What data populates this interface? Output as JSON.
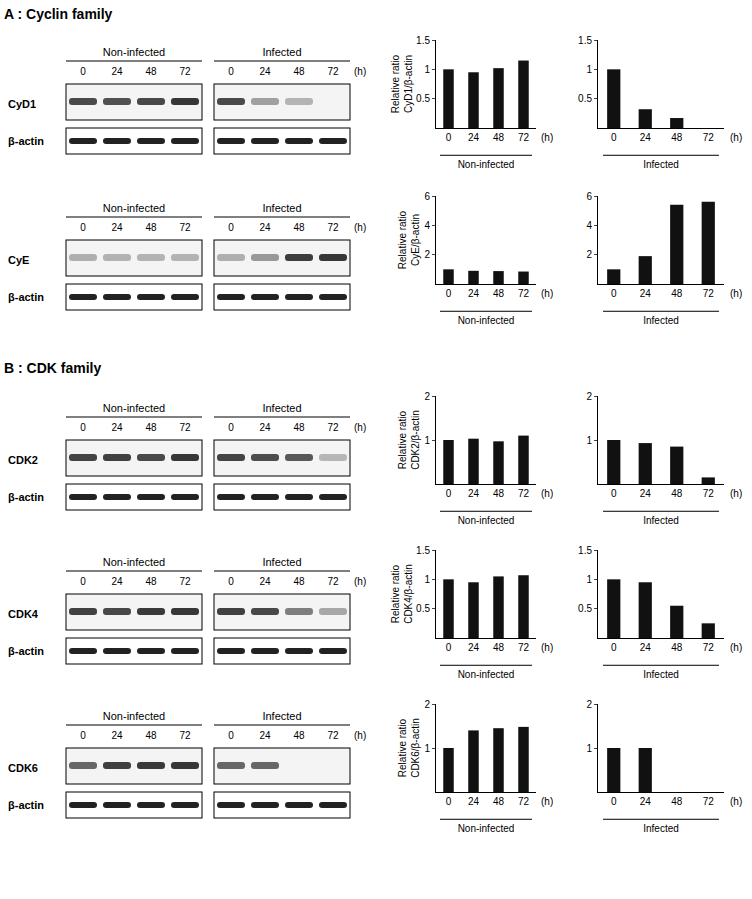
{
  "sections": [
    {
      "title": "A : Cyclin family",
      "blots": [
        {
          "protein": "CyD1",
          "loading": "β-actin",
          "groups": [
            "Non-infected",
            "Infected"
          ],
          "lanes": [
            "0",
            "24",
            "48",
            "72"
          ],
          "unit": "(h)"
        },
        {
          "protein": "CyE",
          "loading": "β-actin",
          "groups": [
            "Non-infected",
            "Infected"
          ],
          "lanes": [
            "0",
            "24",
            "48",
            "72"
          ],
          "unit": "(h)"
        }
      ]
    },
    {
      "title": "B : CDK family",
      "blots": [
        {
          "protein": "CDK2",
          "loading": "β-actin",
          "groups": [
            "Non-infected",
            "Infected"
          ],
          "lanes": [
            "0",
            "24",
            "48",
            "72"
          ],
          "unit": "(h)"
        },
        {
          "protein": "CDK4",
          "loading": "β-actin",
          "groups": [
            "Non-infected",
            "Infected"
          ],
          "lanes": [
            "0",
            "24",
            "48",
            "72"
          ],
          "unit": "(h)"
        },
        {
          "protein": "CDK6",
          "loading": "β-actin",
          "groups": [
            "Non-infected",
            "Infected"
          ],
          "lanes": [
            "0",
            "24",
            "48",
            "72"
          ],
          "unit": "(h)"
        }
      ]
    }
  ],
  "chart_data": [
    {
      "type": "bar",
      "ylabel": [
        "Relative ratio",
        "CyD1/β-actin"
      ],
      "xlabel": "Non-infected",
      "unit": "(h)",
      "categories": [
        "0",
        "24",
        "48",
        "72"
      ],
      "values": [
        1,
        0.95,
        1.02,
        1.15
      ],
      "ylim": [
        0,
        1.5
      ],
      "yticks": [
        0.5,
        1,
        1.5
      ],
      "color": "#111111"
    },
    {
      "type": "bar",
      "xlabel": "Infected",
      "unit": "(h)",
      "categories": [
        "0",
        "24",
        "48",
        "72"
      ],
      "values": [
        1,
        0.32,
        0.17,
        0
      ],
      "ylim": [
        0,
        1.5
      ],
      "yticks": [
        0.5,
        1,
        1.5
      ],
      "color": "#111111"
    },
    {
      "type": "bar",
      "ylabel": [
        "Relative ratio",
        "CyE/β-actin"
      ],
      "xlabel": "Non-infected",
      "unit": "(h)",
      "categories": [
        "0",
        "24",
        "48",
        "72"
      ],
      "values": [
        1,
        0.9,
        0.88,
        0.85
      ],
      "ylim": [
        0,
        6
      ],
      "yticks": [
        2,
        4,
        6
      ],
      "color": "#111111"
    },
    {
      "type": "bar",
      "xlabel": "Infected",
      "unit": "(h)",
      "categories": [
        "0",
        "24",
        "48",
        "72"
      ],
      "values": [
        1,
        1.9,
        5.4,
        5.6
      ],
      "ylim": [
        0,
        6
      ],
      "yticks": [
        2,
        4,
        6
      ],
      "color": "#111111"
    },
    {
      "type": "bar",
      "ylabel": [
        "Relative ratio",
        "CDK2/β-actin"
      ],
      "xlabel": "Non-infected",
      "unit": "(h)",
      "categories": [
        "0",
        "24",
        "48",
        "72"
      ],
      "values": [
        1,
        1.03,
        0.97,
        1.1
      ],
      "ylim": [
        0,
        2
      ],
      "yticks": [
        1,
        2
      ],
      "color": "#111111"
    },
    {
      "type": "bar",
      "xlabel": "Infected",
      "unit": "(h)",
      "categories": [
        "0",
        "24",
        "48",
        "72"
      ],
      "values": [
        1,
        0.93,
        0.85,
        0.15
      ],
      "ylim": [
        0,
        2
      ],
      "yticks": [
        1,
        2
      ],
      "color": "#111111"
    },
    {
      "type": "bar",
      "ylabel": [
        "Relative ratio",
        "CDK4/β-actin"
      ],
      "xlabel": "Non-infected",
      "unit": "(h)",
      "categories": [
        "0",
        "24",
        "48",
        "72"
      ],
      "values": [
        1,
        0.95,
        1.05,
        1.07
      ],
      "ylim": [
        0,
        1.5
      ],
      "yticks": [
        0.5,
        1,
        1.5
      ],
      "color": "#111111"
    },
    {
      "type": "bar",
      "xlabel": "Infected",
      "unit": "(h)",
      "categories": [
        "0",
        "24",
        "48",
        "72"
      ],
      "values": [
        1,
        0.95,
        0.55,
        0.25
      ],
      "ylim": [
        0,
        1.5
      ],
      "yticks": [
        0.5,
        1,
        1.5
      ],
      "color": "#111111"
    },
    {
      "type": "bar",
      "ylabel": [
        "Relative ratio",
        "CDK6/β-actin"
      ],
      "xlabel": "Non-infected",
      "unit": "(h)",
      "categories": [
        "0",
        "24",
        "48",
        "72"
      ],
      "values": [
        1,
        1.4,
        1.45,
        1.48
      ],
      "ylim": [
        0,
        2
      ],
      "yticks": [
        1,
        2
      ],
      "color": "#111111"
    },
    {
      "type": "bar",
      "xlabel": "Infected",
      "unit": "(h)",
      "categories": [
        "0",
        "24",
        "48",
        "72"
      ],
      "values": [
        1,
        1,
        0,
        0
      ],
      "ylim": [
        0,
        2
      ],
      "yticks": [
        1,
        2
      ],
      "color": "#111111"
    }
  ]
}
